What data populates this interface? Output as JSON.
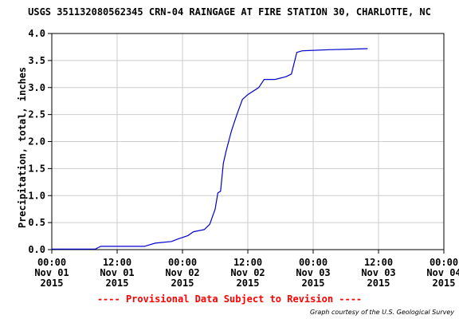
{
  "title": "USGS 351132080562345 CRN-04 RAINGAGE AT FIRE STATION 30, CHARLOTTE, NC",
  "provisional_note": "---- Provisional Data Subject to Revision ----",
  "credit": "Graph courtesy of the U.S. Geological Survey",
  "colors": {
    "line": "#0000cc",
    "grid": "#cccccc",
    "provisional": "#ff0000"
  },
  "chart_data": {
    "type": "line",
    "title": "USGS 351132080562345 CRN-04 RAINGAGE AT FIRE STATION 30, CHARLOTTE, NC",
    "xlabel": "",
    "ylabel": "Precipitation, total, inches",
    "ylim": [
      0.0,
      4.0
    ],
    "y_ticks": [
      "0.0",
      "0.5",
      "1.0",
      "1.5",
      "2.0",
      "2.5",
      "3.0",
      "3.5",
      "4.0"
    ],
    "x_range": [
      "2015-11-01T00:00",
      "2015-11-04T00:00"
    ],
    "x_ticks": [
      {
        "time": "00:00",
        "date": "Nov 01",
        "year": "2015"
      },
      {
        "time": "12:00",
        "date": "Nov 01",
        "year": "2015"
      },
      {
        "time": "00:00",
        "date": "Nov 02",
        "year": "2015"
      },
      {
        "time": "12:00",
        "date": "Nov 02",
        "year": "2015"
      },
      {
        "time": "00:00",
        "date": "Nov 03",
        "year": "2015"
      },
      {
        "time": "12:00",
        "date": "Nov 03",
        "year": "2015"
      },
      {
        "time": "00:00",
        "date": "Nov 04",
        "year": "2015"
      }
    ],
    "grid": true,
    "series": [
      {
        "x": [
          "2015-11-01T00:00",
          "2015-11-01T08:00",
          "2015-11-01T09:00",
          "2015-11-01T17:00",
          "2015-11-01T19:00",
          "2015-11-01T22:00",
          "2015-11-01T23:00",
          "2015-11-02T01:00",
          "2015-11-02T02:00",
          "2015-11-02T04:00",
          "2015-11-02T05:00",
          "2015-11-02T06:00",
          "2015-11-02T06:30",
          "2015-11-02T07:00",
          "2015-11-02T07:30",
          "2015-11-02T08:00",
          "2015-11-02T09:00",
          "2015-11-02T10:00",
          "2015-11-02T11:00",
          "2015-11-02T12:00",
          "2015-11-02T14:00",
          "2015-11-02T15:00",
          "2015-11-02T17:00",
          "2015-11-02T19:00",
          "2015-11-02T20:00",
          "2015-11-02T21:00",
          "2015-11-02T22:00",
          "2015-11-03T03:00",
          "2015-11-03T07:00",
          "2015-11-03T10:00"
        ],
        "y": [
          0.01,
          0.01,
          0.06,
          0.06,
          0.12,
          0.15,
          0.19,
          0.26,
          0.33,
          0.37,
          0.47,
          0.75,
          1.05,
          1.08,
          1.6,
          1.82,
          2.2,
          2.5,
          2.78,
          2.87,
          3.0,
          3.15,
          3.15,
          3.2,
          3.25,
          3.65,
          3.68,
          3.7,
          3.71,
          3.72
        ]
      }
    ]
  }
}
